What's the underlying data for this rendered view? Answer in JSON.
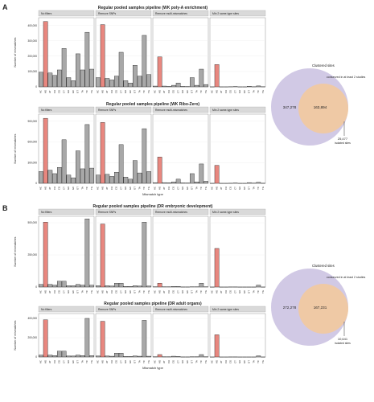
{
  "panel_labels": [
    "A",
    "B"
  ],
  "facet_labels": [
    "No filters",
    "Remove SNPs",
    "Remove multi-mismatches",
    "Min 2 same-type sites"
  ],
  "mismatch_types": [
    "AC",
    "AG",
    "AT",
    "CA",
    "CG",
    "CT",
    "GA",
    "GC",
    "GT",
    "TA",
    "TC",
    "TG"
  ],
  "colors": {
    "highlight": "#e8877f",
    "other": "#a8a8a8",
    "venn_total": "#c9bfe0",
    "venn_conserved": "#f5c99a",
    "venn_overlap": "#e3a98f",
    "venn_total_label": "#7a3e8c",
    "venn_conserved_label": "#b85b1e"
  },
  "chart_data": [
    {
      "type": "bar",
      "title": "Regular pooled samples pipeline (WK poly-A enrichment)",
      "ylabel": "Number of mismatches",
      "xlabel": "",
      "ylim": [
        0,
        450000
      ],
      "yticks": [
        0,
        100000,
        200000,
        300000,
        400000
      ],
      "ytick_labels": [
        "0",
        "100,000",
        "200,000",
        "300,000",
        "400,000"
      ],
      "categories": [
        "AC",
        "AG",
        "AT",
        "CA",
        "CG",
        "CT",
        "GA",
        "GC",
        "GT",
        "TA",
        "TC",
        "TG"
      ],
      "series": [
        {
          "name": "No filters",
          "values": [
            95000,
            425000,
            90000,
            75000,
            110000,
            250000,
            60000,
            40000,
            215000,
            110000,
            355000,
            115000
          ]
        },
        {
          "name": "Remove SNPs",
          "values": [
            60000,
            405000,
            55000,
            45000,
            70000,
            225000,
            40000,
            25000,
            140000,
            70000,
            335000,
            80000
          ]
        },
        {
          "name": "Remove multi-mismatches",
          "values": [
            5000,
            195000,
            5000,
            3000,
            10000,
            25000,
            3000,
            2000,
            60000,
            10000,
            115000,
            15000
          ]
        },
        {
          "name": "Min 2 same-type sites",
          "values": [
            500,
            145000,
            500,
            500,
            1000,
            2000,
            500,
            500,
            4000,
            1000,
            6000,
            1000
          ]
        }
      ]
    },
    {
      "type": "bar",
      "title": "Regular pooled samples pipeline (WK Ribo-Zero)",
      "ylabel": "Number of mismatches",
      "xlabel": "Mismatch type",
      "ylim": [
        0,
        1000000
      ],
      "yticks": [
        0,
        300000,
        600000,
        900000
      ],
      "ytick_labels": [
        "0",
        "300,000",
        "600,000",
        "900,000"
      ],
      "categories": [
        "AC",
        "AG",
        "AT",
        "CA",
        "CG",
        "CT",
        "GA",
        "GC",
        "GT",
        "TA",
        "TC",
        "TG"
      ],
      "series": [
        {
          "name": "No filters",
          "values": [
            170000,
            940000,
            190000,
            140000,
            230000,
            630000,
            120000,
            80000,
            470000,
            210000,
            850000,
            220000
          ]
        },
        {
          "name": "Remove SNPs",
          "values": [
            120000,
            880000,
            130000,
            100000,
            160000,
            560000,
            90000,
            60000,
            330000,
            150000,
            790000,
            170000
          ]
        },
        {
          "name": "Remove multi-mismatches",
          "values": [
            10000,
            380000,
            10000,
            8000,
            20000,
            60000,
            6000,
            5000,
            140000,
            20000,
            280000,
            30000
          ]
        },
        {
          "name": "Min 2 same-type sites",
          "values": [
            1000,
            260000,
            1000,
            1000,
            2000,
            5000,
            1000,
            1000,
            10000,
            3000,
            15000,
            2000
          ]
        }
      ]
    },
    {
      "type": "bar",
      "title": "Regular pooled samples pipeline (DR embryonic development)",
      "ylabel": "Number of mismatches",
      "xlabel": "",
      "ylim": [
        0,
        550000
      ],
      "yticks": [
        0,
        250000,
        500000
      ],
      "ytick_labels": [
        "0",
        "250,000",
        "500,000"
      ],
      "categories": [
        "AC",
        "AG",
        "AT",
        "CA",
        "CG",
        "CT",
        "GA",
        "GC",
        "GT",
        "TA",
        "TC",
        "TG"
      ],
      "series": [
        {
          "name": "No filters",
          "values": [
            20000,
            505000,
            20000,
            15000,
            45000,
            45000,
            10000,
            10000,
            20000,
            15000,
            530000,
            15000
          ]
        },
        {
          "name": "Remove SNPs",
          "values": [
            10000,
            490000,
            10000,
            8000,
            30000,
            30000,
            5000,
            5000,
            10000,
            8000,
            505000,
            8000
          ]
        },
        {
          "name": "Remove multi-mismatches",
          "values": [
            2000,
            30000,
            2000,
            2000,
            5000,
            5000,
            1000,
            1000,
            2000,
            2000,
            30000,
            2000
          ]
        },
        {
          "name": "Min 2 same-type sites",
          "values": [
            500,
            300000,
            500,
            500,
            1000,
            1000,
            500,
            500,
            500,
            500,
            15000,
            500
          ]
        }
      ]
    },
    {
      "type": "bar",
      "title": "Regular pooled samples pipeline (DR adult organs)",
      "ylabel": "Number of mismatches",
      "xlabel": "Mismatch type",
      "ylim": [
        0,
        450000
      ],
      "yticks": [
        0,
        200000,
        400000
      ],
      "ytick_labels": [
        "0",
        "200,000",
        "400,000"
      ],
      "categories": [
        "AC",
        "AG",
        "AT",
        "CA",
        "CG",
        "CT",
        "GA",
        "GC",
        "GT",
        "TA",
        "TC",
        "TG"
      ],
      "series": [
        {
          "name": "No filters",
          "values": [
            20000,
            385000,
            20000,
            15000,
            60000,
            60000,
            10000,
            10000,
            20000,
            15000,
            400000,
            15000
          ]
        },
        {
          "name": "Remove SNPs",
          "values": [
            10000,
            370000,
            10000,
            8000,
            40000,
            40000,
            5000,
            5000,
            10000,
            8000,
            380000,
            8000
          ]
        },
        {
          "name": "Remove multi-mismatches",
          "values": [
            2000,
            25000,
            2000,
            2000,
            8000,
            5000,
            1000,
            1000,
            2000,
            2000,
            25000,
            2000
          ]
        },
        {
          "name": "Min 2 same-type sites",
          "values": [
            500,
            230000,
            500,
            500,
            1000,
            1000,
            500,
            500,
            500,
            500,
            12000,
            500
          ]
        }
      ]
    }
  ],
  "venns": [
    {
      "total_label": "Clustered sites",
      "conserved_label": "conserved in at least 2 studies",
      "total_only": "347,278",
      "overlap": "163,894",
      "conserved_only": "25,477",
      "conserved_only_label": "isolated sites"
    },
    {
      "total_label": "Clustered sites",
      "conserved_label": "conserved in at least 2 studies",
      "total_only": "272,278",
      "overlap": "167,231",
      "conserved_only": "10,641",
      "conserved_only_label": "isolated sites"
    }
  ]
}
